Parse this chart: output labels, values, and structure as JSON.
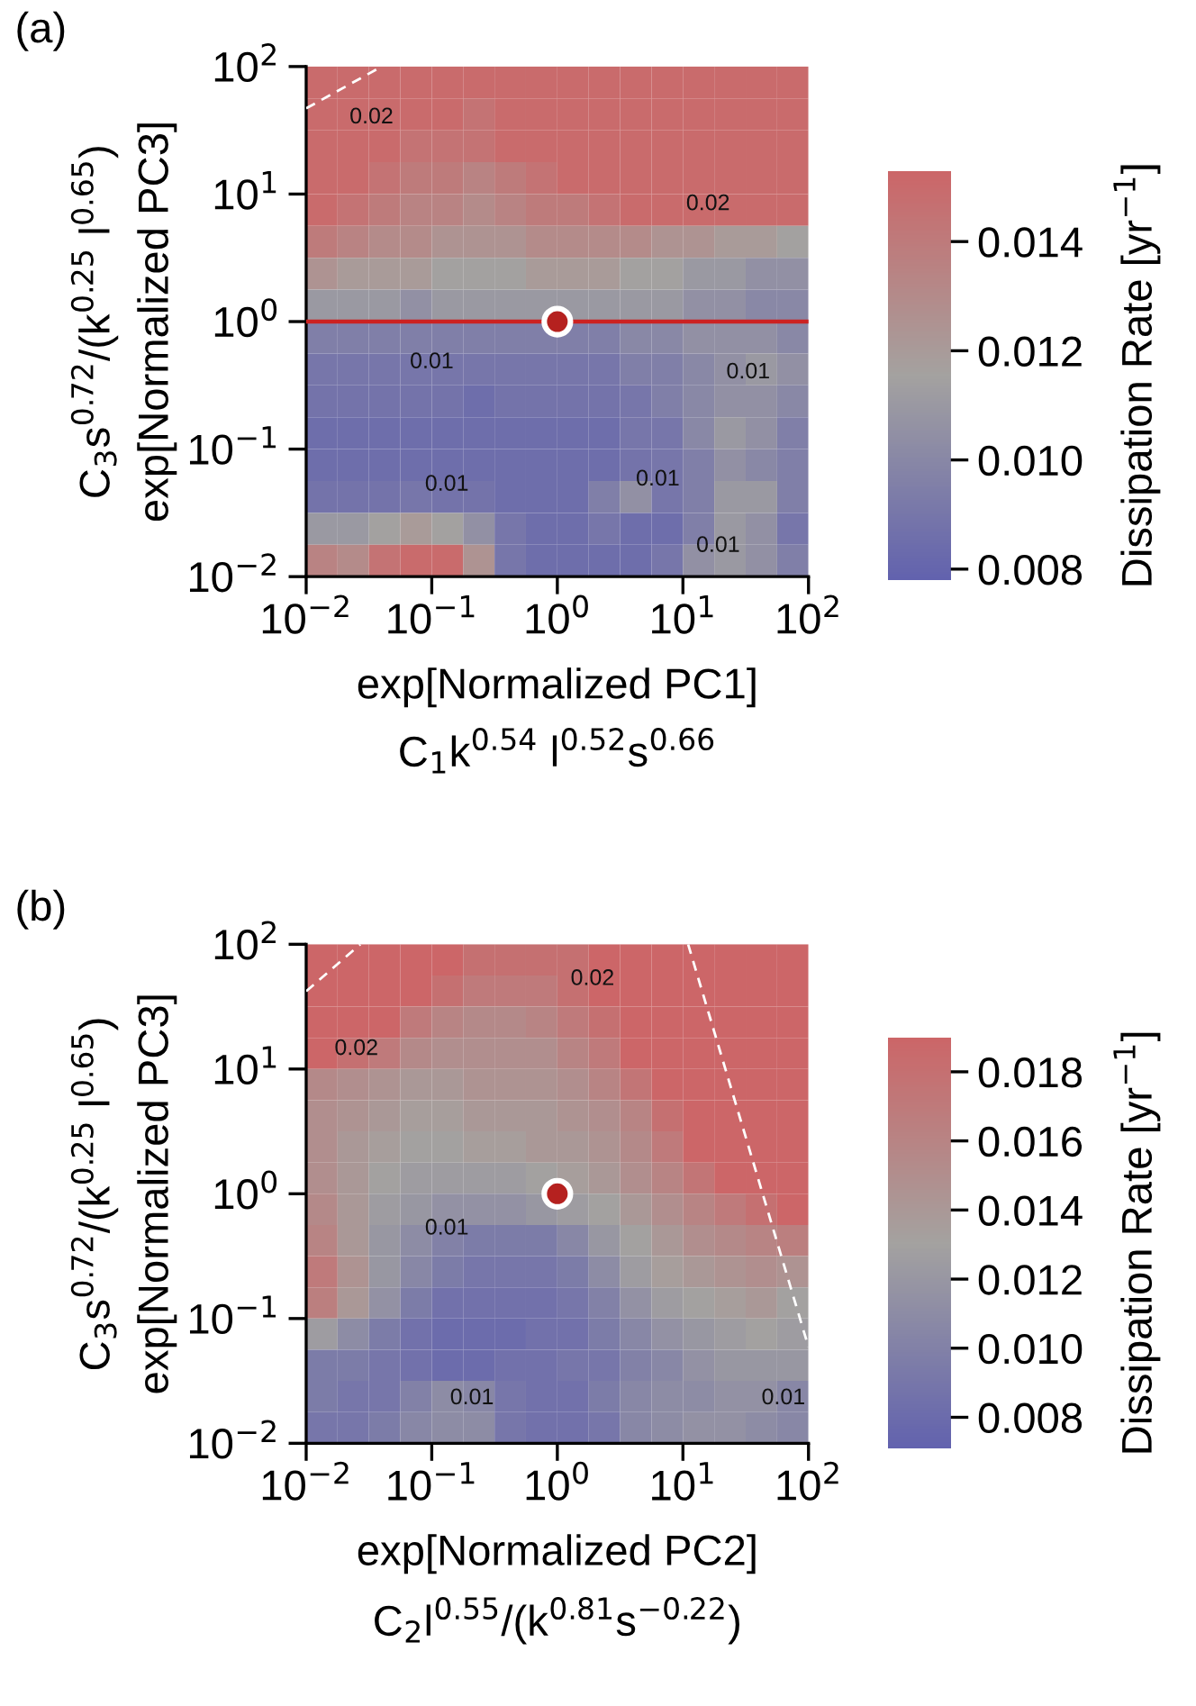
{
  "chart_data": [
    {
      "type": "heatmap",
      "title": "(a)",
      "xlabel": "exp[Normalized PC1]\nC$_{1}$k$^{0.54}$ l$^{0.52}$s$^{0.66}$",
      "ylabel": "C$_{3}$s$^{0.72}$/(k$^{0.25}$ l$^{0.65}$)\nexp[Normalized PC3]",
      "clabel": "Dissipation Rate [yr$^{−1}$]",
      "log": "xy",
      "xlim": [
        0.01,
        100
      ],
      "ylim": [
        0.01,
        100
      ],
      "xticks": [
        {
          "value": 0.01,
          "label": "10$^{−2}$"
        },
        {
          "value": 0.1,
          "label": "10$^{−1}$"
        },
        {
          "value": 1,
          "label": "10$^{0}$"
        },
        {
          "value": 10,
          "label": "10$^{1}$"
        },
        {
          "value": 100,
          "label": "10$^{2}$"
        }
      ],
      "yticks": [
        {
          "value": 0.01,
          "label": "10$^{−2}$"
        },
        {
          "value": 0.1,
          "label": "10$^{−1}$"
        },
        {
          "value": 1,
          "label": "10$^{0}$"
        },
        {
          "value": 10,
          "label": "10$^{1}$"
        },
        {
          "value": 100,
          "label": "10$^{2}$"
        }
      ],
      "clim": [
        0.0078,
        0.0153
      ],
      "cticks": [
        0.008,
        {
          "value": 0.01,
          "label": "0.010"
        },
        0.012,
        0.014
      ],
      "cells": [
        [
          0.015,
          0.015,
          0.015,
          0.015,
          0.015,
          0.015,
          0.015,
          0.015,
          0.015,
          0.015,
          0.015,
          0.015,
          0.015,
          0.015,
          0.015,
          0.015
        ],
        [
          0.015,
          0.015,
          0.015,
          0.015,
          0.015,
          0.0145,
          0.015,
          0.015,
          0.015,
          0.015,
          0.015,
          0.015,
          0.015,
          0.015,
          0.015,
          0.015
        ],
        [
          0.015,
          0.015,
          0.015,
          0.0145,
          0.0145,
          0.0145,
          0.015,
          0.015,
          0.015,
          0.015,
          0.015,
          0.015,
          0.015,
          0.015,
          0.015,
          0.015
        ],
        [
          0.015,
          0.015,
          0.0145,
          0.014,
          0.014,
          0.0135,
          0.014,
          0.0145,
          0.015,
          0.015,
          0.015,
          0.015,
          0.015,
          0.015,
          0.015,
          0.015
        ],
        [
          0.015,
          0.0145,
          0.014,
          0.0135,
          0.0135,
          0.013,
          0.0135,
          0.014,
          0.014,
          0.0145,
          0.015,
          0.015,
          0.015,
          0.015,
          0.015,
          0.015
        ],
        [
          0.014,
          0.0135,
          0.013,
          0.013,
          0.0125,
          0.0125,
          0.0125,
          0.013,
          0.013,
          0.013,
          0.013,
          0.0125,
          0.0125,
          0.012,
          0.012,
          0.0115
        ],
        [
          0.0125,
          0.012,
          0.012,
          0.012,
          0.0115,
          0.0115,
          0.0115,
          0.012,
          0.012,
          0.012,
          0.0115,
          0.0115,
          0.011,
          0.011,
          0.0105,
          0.0105
        ],
        [
          0.011,
          0.011,
          0.011,
          0.0105,
          0.011,
          0.011,
          0.011,
          0.011,
          0.011,
          0.011,
          0.011,
          0.011,
          0.0105,
          0.0105,
          0.01,
          0.01
        ],
        [
          0.0095,
          0.0095,
          0.0095,
          0.0095,
          0.0095,
          0.0095,
          0.0095,
          0.0095,
          0.0095,
          0.0095,
          0.01,
          0.01,
          0.0105,
          0.0105,
          0.0105,
          0.01
        ],
        [
          0.009,
          0.009,
          0.009,
          0.009,
          0.009,
          0.009,
          0.009,
          0.009,
          0.009,
          0.009,
          0.0095,
          0.0095,
          0.01,
          0.0105,
          0.011,
          0.0105
        ],
        [
          0.0088,
          0.0088,
          0.0088,
          0.0088,
          0.0088,
          0.0085,
          0.0088,
          0.0088,
          0.0088,
          0.0088,
          0.009,
          0.0095,
          0.01,
          0.0105,
          0.0105,
          0.01
        ],
        [
          0.0085,
          0.0085,
          0.0085,
          0.0085,
          0.0085,
          0.0085,
          0.0085,
          0.0085,
          0.0085,
          0.0085,
          0.009,
          0.009,
          0.01,
          0.011,
          0.0105,
          0.0095
        ],
        [
          0.0085,
          0.0085,
          0.0085,
          0.0085,
          0.0085,
          0.0085,
          0.0085,
          0.0085,
          0.0085,
          0.0085,
          0.0088,
          0.009,
          0.0095,
          0.0105,
          0.01,
          0.0095
        ],
        [
          0.0088,
          0.0088,
          0.0088,
          0.009,
          0.0088,
          0.0088,
          0.0085,
          0.0085,
          0.0085,
          0.0095,
          0.0105,
          0.009,
          0.0095,
          0.011,
          0.011,
          0.0095
        ],
        [
          0.011,
          0.011,
          0.0115,
          0.012,
          0.0115,
          0.0105,
          0.009,
          0.0085,
          0.0085,
          0.009,
          0.0085,
          0.0085,
          0.0095,
          0.011,
          0.0105,
          0.009
        ],
        [
          0.0135,
          0.013,
          0.0145,
          0.015,
          0.015,
          0.0125,
          0.009,
          0.0085,
          0.0085,
          0.0085,
          0.0085,
          0.009,
          0.0105,
          0.011,
          0.0105,
          0.0095
        ]
      ],
      "series": [
        {
          "type": "line",
          "color": "#ffffff",
          "line_style": "dashed",
          "x": [
            0.01,
            0.04
          ],
          "values": [
            47,
            100
          ]
        },
        {
          "type": "scatter",
          "color": "#b5211f",
          "marker": "circle",
          "x": [
            1
          ],
          "values": [
            1
          ]
        }
      ],
      "ref_lines": [
        {
          "axis": "y",
          "value": 1,
          "color": "#cc2222"
        }
      ],
      "annotations": [
        "0.02",
        "0.02",
        "0.01",
        "0.01",
        "0.01",
        "0.01",
        "0.01"
      ]
    },
    {
      "type": "heatmap",
      "title": "(b)",
      "xlabel": "exp[Normalized PC2]\nC$_{2}$l$^{0.55}$/(k$^{0.81}$s$^{−0.22}$)",
      "ylabel": "C$_{3}$s$^{0.72}$/(k$^{0.25}$ l$^{0.65}$)\nexp[Normalized PC3]",
      "clabel": "Dissipation Rate [yr$^{−1}$]",
      "log": "xy",
      "xlim": [
        0.01,
        100
      ],
      "ylim": [
        0.01,
        100
      ],
      "xticks": [
        {
          "value": 0.01,
          "label": "10$^{−2}$"
        },
        {
          "value": 0.1,
          "label": "10$^{−1}$"
        },
        {
          "value": 1,
          "label": "10$^{0}$"
        },
        {
          "value": 10,
          "label": "10$^{1}$"
        },
        {
          "value": 100,
          "label": "10$^{2}$"
        }
      ],
      "yticks": [
        {
          "value": 0.01,
          "label": "10$^{−2}$"
        },
        {
          "value": 0.1,
          "label": "10$^{−1}$"
        },
        {
          "value": 1,
          "label": "10$^{0}$"
        },
        {
          "value": 10,
          "label": "10$^{1}$"
        },
        {
          "value": 100,
          "label": "10$^{2}$"
        }
      ],
      "clim": [
        0.0071,
        0.019
      ],
      "cticks": [
        0.008,
        {
          "value": 0.01,
          "label": "0.010"
        },
        0.012,
        0.014,
        0.016,
        0.018
      ],
      "cells": [
        [
          0.019,
          0.019,
          0.019,
          0.019,
          0.019,
          0.018,
          0.018,
          0.018,
          0.018,
          0.019,
          0.019,
          0.019,
          0.019,
          0.019,
          0.019,
          0.019
        ],
        [
          0.019,
          0.019,
          0.019,
          0.019,
          0.018,
          0.017,
          0.017,
          0.017,
          0.018,
          0.019,
          0.019,
          0.019,
          0.019,
          0.019,
          0.019,
          0.019
        ],
        [
          0.019,
          0.019,
          0.019,
          0.017,
          0.016,
          0.0155,
          0.0155,
          0.016,
          0.017,
          0.018,
          0.019,
          0.019,
          0.019,
          0.019,
          0.019,
          0.019
        ],
        [
          0.019,
          0.018,
          0.017,
          0.0155,
          0.015,
          0.015,
          0.015,
          0.015,
          0.016,
          0.017,
          0.019,
          0.019,
          0.019,
          0.019,
          0.019,
          0.019
        ],
        [
          0.0155,
          0.015,
          0.0145,
          0.014,
          0.014,
          0.0145,
          0.0145,
          0.0145,
          0.015,
          0.016,
          0.0175,
          0.019,
          0.019,
          0.019,
          0.019,
          0.019
        ],
        [
          0.015,
          0.0145,
          0.014,
          0.0135,
          0.0135,
          0.014,
          0.014,
          0.014,
          0.0145,
          0.015,
          0.016,
          0.018,
          0.019,
          0.019,
          0.019,
          0.019
        ],
        [
          0.015,
          0.014,
          0.0135,
          0.013,
          0.013,
          0.0135,
          0.0135,
          0.014,
          0.014,
          0.0145,
          0.0155,
          0.017,
          0.019,
          0.019,
          0.019,
          0.019
        ],
        [
          0.015,
          0.014,
          0.013,
          0.0125,
          0.0125,
          0.0125,
          0.0125,
          0.013,
          0.0135,
          0.014,
          0.015,
          0.016,
          0.0175,
          0.019,
          0.019,
          0.019
        ],
        [
          0.0155,
          0.014,
          0.0125,
          0.012,
          0.0115,
          0.0115,
          0.0115,
          0.012,
          0.0125,
          0.013,
          0.014,
          0.015,
          0.016,
          0.017,
          0.018,
          0.019
        ],
        [
          0.016,
          0.014,
          0.012,
          0.011,
          0.01,
          0.0095,
          0.0095,
          0.0095,
          0.0105,
          0.012,
          0.013,
          0.014,
          0.015,
          0.0155,
          0.016,
          0.0165
        ],
        [
          0.017,
          0.0145,
          0.012,
          0.0105,
          0.0095,
          0.009,
          0.009,
          0.009,
          0.0095,
          0.011,
          0.0125,
          0.0135,
          0.014,
          0.0145,
          0.015,
          0.0145
        ],
        [
          0.0165,
          0.014,
          0.0115,
          0.0095,
          0.0085,
          0.0085,
          0.0085,
          0.0085,
          0.009,
          0.01,
          0.0115,
          0.0125,
          0.013,
          0.0135,
          0.014,
          0.013
        ],
        [
          0.0125,
          0.011,
          0.0095,
          0.0085,
          0.008,
          0.008,
          0.008,
          0.0085,
          0.0085,
          0.0095,
          0.0105,
          0.0115,
          0.012,
          0.0125,
          0.013,
          0.0125
        ],
        [
          0.0095,
          0.0095,
          0.009,
          0.0085,
          0.008,
          0.008,
          0.0085,
          0.0085,
          0.009,
          0.009,
          0.01,
          0.0105,
          0.0115,
          0.012,
          0.012,
          0.012
        ],
        [
          0.0095,
          0.009,
          0.009,
          0.01,
          0.011,
          0.0105,
          0.009,
          0.0085,
          0.0085,
          0.0095,
          0.0105,
          0.011,
          0.011,
          0.0115,
          0.0115,
          0.0105
        ],
        [
          0.009,
          0.009,
          0.0095,
          0.0105,
          0.011,
          0.011,
          0.009,
          0.0085,
          0.0085,
          0.009,
          0.0105,
          0.011,
          0.0115,
          0.0115,
          0.011,
          0.0105
        ]
      ],
      "series": [
        {
          "type": "line",
          "color": "#ffffff",
          "line_style": "dashed",
          "x": [
            0.01,
            0.027
          ],
          "values": [
            42,
            100
          ]
        },
        {
          "type": "line",
          "color": "#ffffff",
          "line_style": "dashed",
          "x": [
            11,
            100
          ],
          "values": [
            100,
            0.059
          ]
        },
        {
          "type": "scatter",
          "color": "#b5211f",
          "marker": "circle",
          "x": [
            1
          ],
          "values": [
            1
          ]
        }
      ],
      "annotations": [
        "0.02",
        "0.02",
        "0.01",
        "0.01",
        "0.01"
      ]
    }
  ]
}
